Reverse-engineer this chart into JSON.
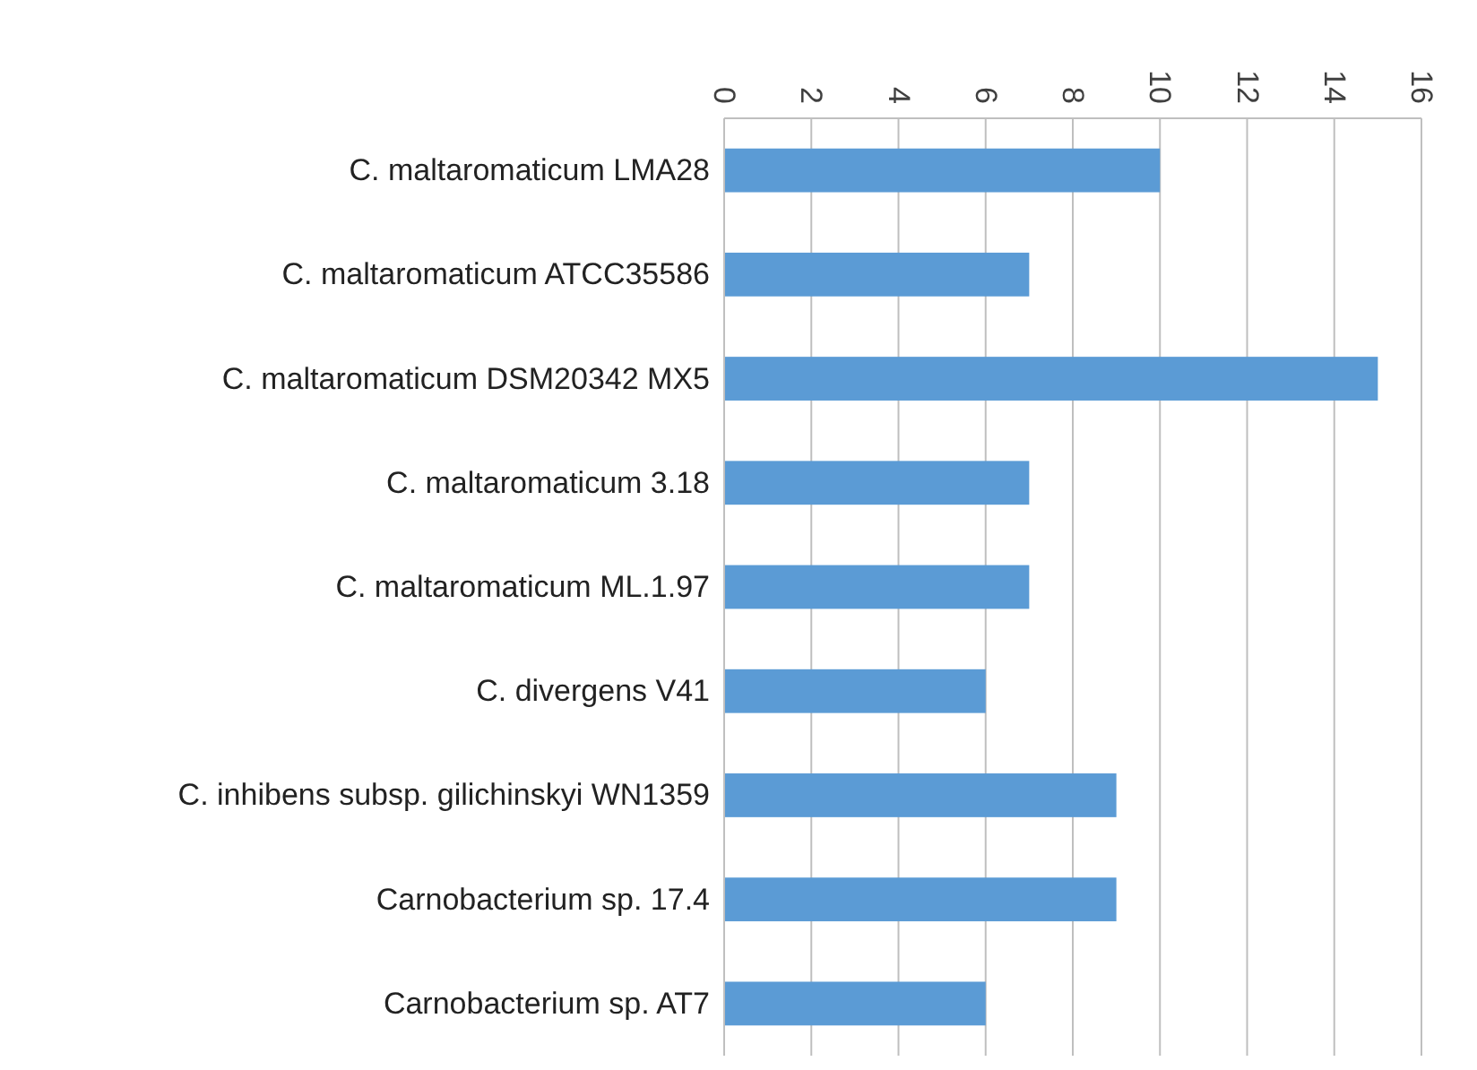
{
  "chart_data": {
    "type": "bar",
    "orientation": "horizontal",
    "categories": [
      "C. maltaromaticum LMA28",
      "C. maltaromaticum ATCC35586",
      "C. maltaromaticum DSM20342 MX5",
      "C. maltaromaticum 3.18",
      "C. maltaromaticum ML.1.97",
      "C. divergens V41",
      "C. inhibens subsp. gilichinskyi WN1359",
      "Carnobacterium sp. 17.4",
      "Carnobacterium sp. AT7"
    ],
    "values": [
      10,
      7,
      15,
      7,
      7,
      6,
      9,
      9,
      6
    ],
    "color": "#5b9bd5",
    "xlim": [
      0,
      16
    ],
    "xticks": [
      0,
      2,
      4,
      6,
      8,
      10,
      12,
      14,
      16
    ],
    "grid": "x"
  }
}
